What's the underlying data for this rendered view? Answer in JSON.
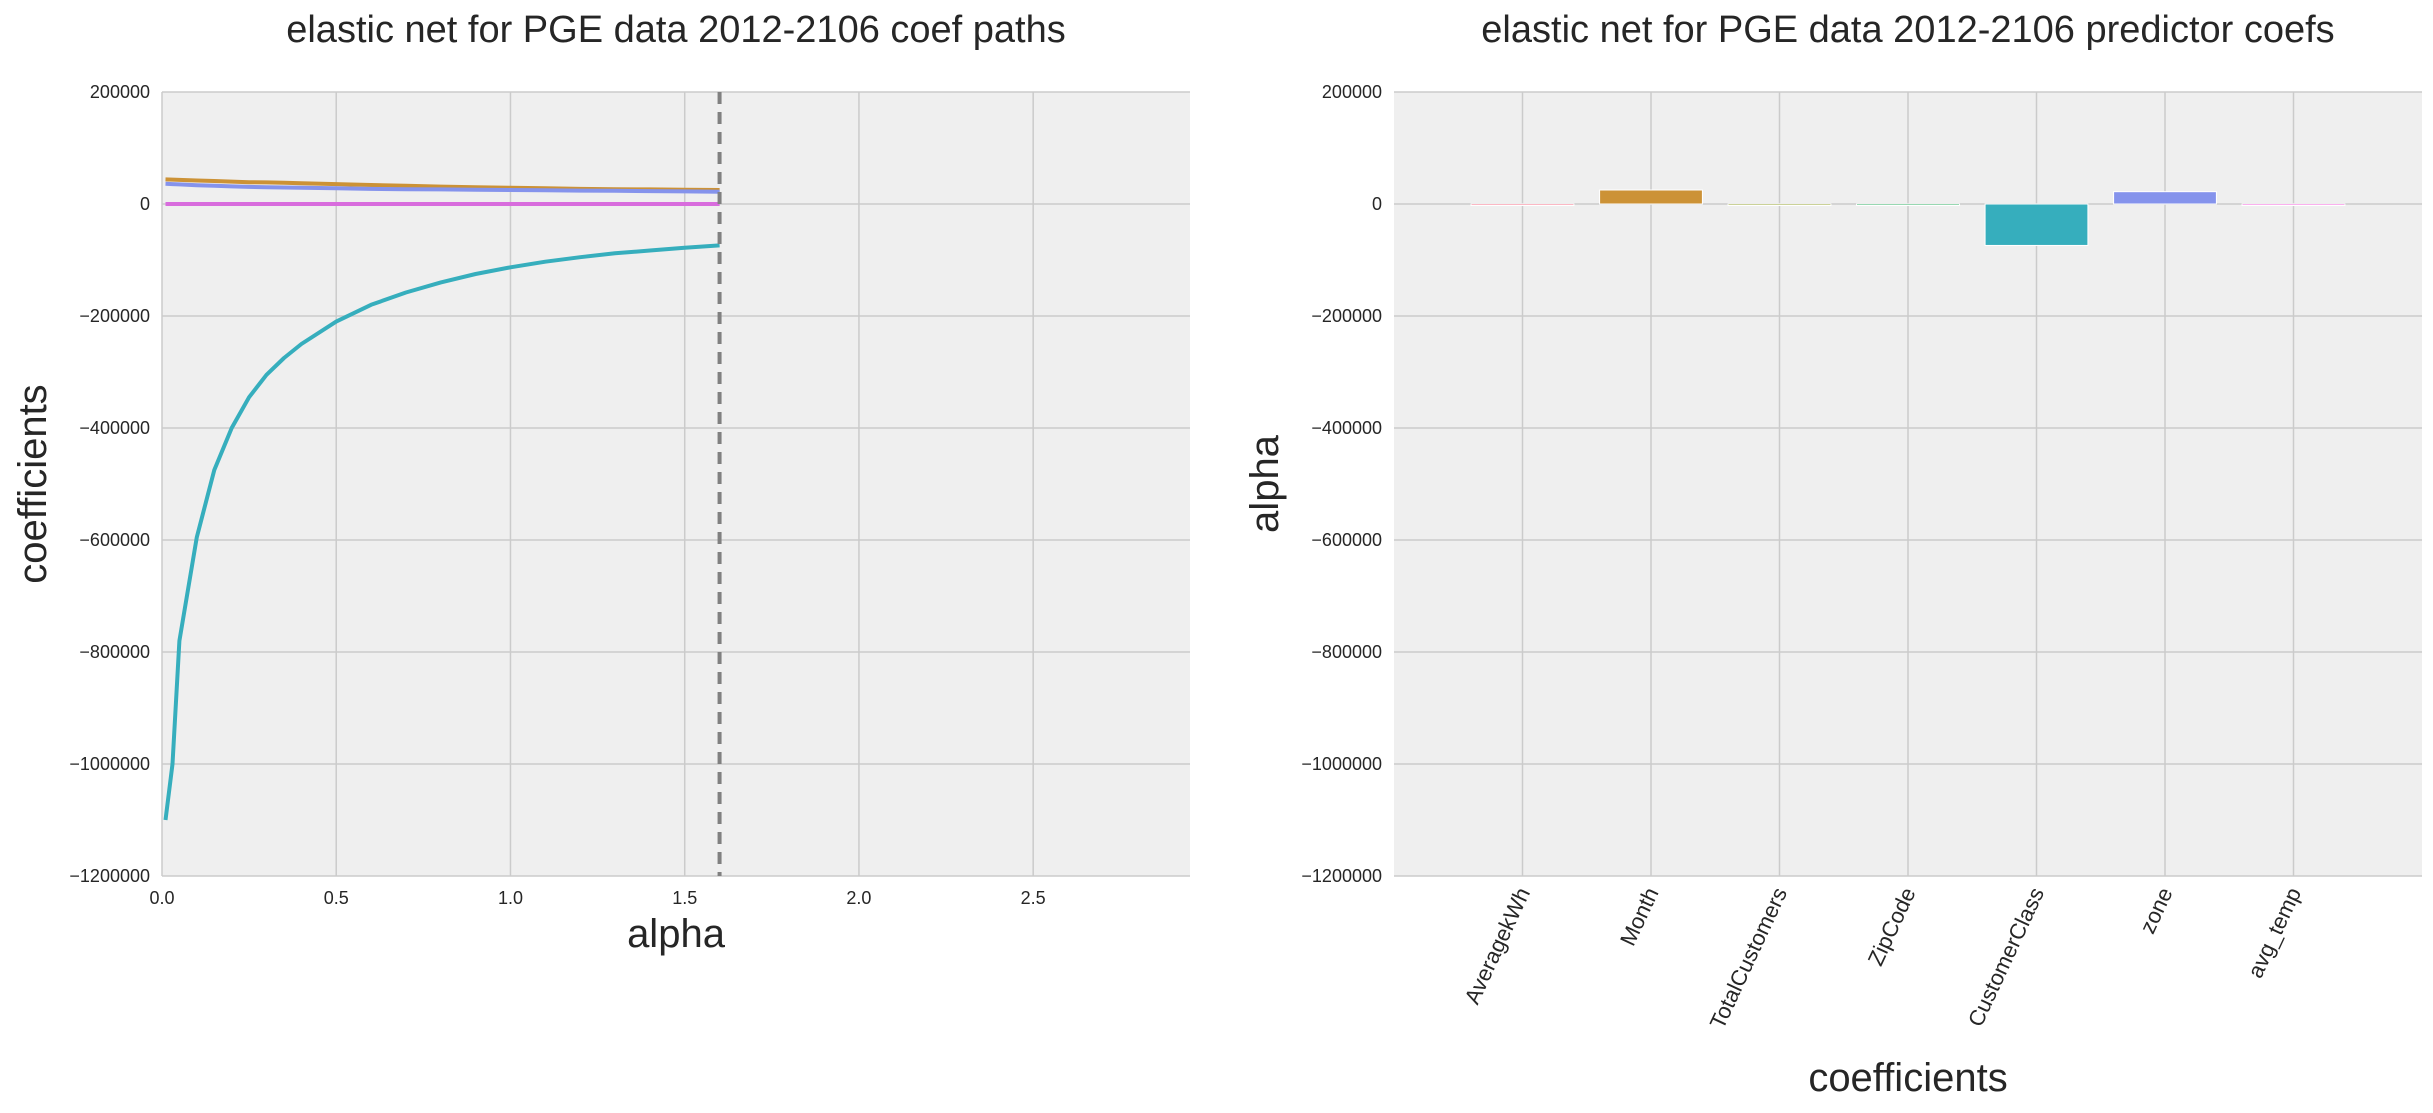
{
  "chart_data": [
    {
      "type": "line",
      "title": "elastic net for PGE data 2012-2106 coef paths",
      "xlabel": "alpha",
      "ylabel": "coefficients",
      "xlim": [
        0,
        2.95
      ],
      "ylim": [
        -1200000,
        200000
      ],
      "xticks": [
        "0.0",
        "0.5",
        "1.0",
        "1.5",
        "2.0",
        "2.5"
      ],
      "yticks": [
        "200000",
        "0",
        "−200000",
        "−400000",
        "−600000",
        "−800000",
        "−1000000",
        "−1200000"
      ],
      "grid": true,
      "selected_alpha": 1.6,
      "x": [
        0.01,
        0.03,
        0.05,
        0.1,
        0.15,
        0.2,
        0.25,
        0.3,
        0.35,
        0.4,
        0.5,
        0.6,
        0.7,
        0.8,
        0.9,
        1.0,
        1.1,
        1.2,
        1.3,
        1.4,
        1.5,
        1.6
      ],
      "series": [
        {
          "color": "#cc9236",
          "values": [
            44000,
            43500,
            43000,
            42000,
            41000,
            40000,
            39000,
            38500,
            38000,
            37000,
            35500,
            34000,
            32500,
            31000,
            30000,
            29000,
            28000,
            27000,
            26500,
            26000,
            25500,
            25000
          ]
        },
        {
          "color": "#8593ec",
          "values": [
            36000,
            35500,
            35000,
            33500,
            32500,
            31500,
            30500,
            30000,
            29500,
            29000,
            28000,
            27000,
            26500,
            26000,
            25500,
            25000,
            24500,
            24000,
            23500,
            23000,
            22500,
            22000
          ]
        },
        {
          "color": "#36aebd",
          "values": [
            -1100000,
            -1000000,
            -780000,
            -595000,
            -475000,
            -400000,
            -345000,
            -305000,
            -275000,
            -250000,
            -210000,
            -180000,
            -158000,
            -140000,
            -125000,
            -113000,
            -103000,
            -95000,
            -88000,
            -83000,
            -78000,
            -74000
          ]
        },
        {
          "color": "#d86cdd",
          "values": [
            0,
            0,
            0,
            0,
            0,
            0,
            0,
            0,
            0,
            0,
            0,
            0,
            0,
            0,
            0,
            0,
            0,
            0,
            0,
            0,
            0,
            0
          ]
        }
      ]
    },
    {
      "type": "bar",
      "title": "elastic net for PGE data 2012-2106 predictor coefs",
      "xlabel": "coefficients",
      "ylabel": "alpha",
      "ylim": [
        -1200000,
        200000
      ],
      "yticks": [
        "200000",
        "0",
        "−200000",
        "−400000",
        "−600000",
        "−800000",
        "−1000000",
        "−1200000"
      ],
      "grid": true,
      "categories": [
        "AveragekWh",
        "Month",
        "TotalCustomers",
        "ZipCode",
        "CustomerClass",
        "zone",
        "avg_temp"
      ],
      "values": [
        0,
        25000,
        0,
        0,
        -74000,
        22000,
        0
      ],
      "colors": [
        "#f77189",
        "#cc9236",
        "#97a431",
        "#32b166",
        "#36aebd",
        "#8593ec",
        "#f561dd"
      ]
    }
  ]
}
